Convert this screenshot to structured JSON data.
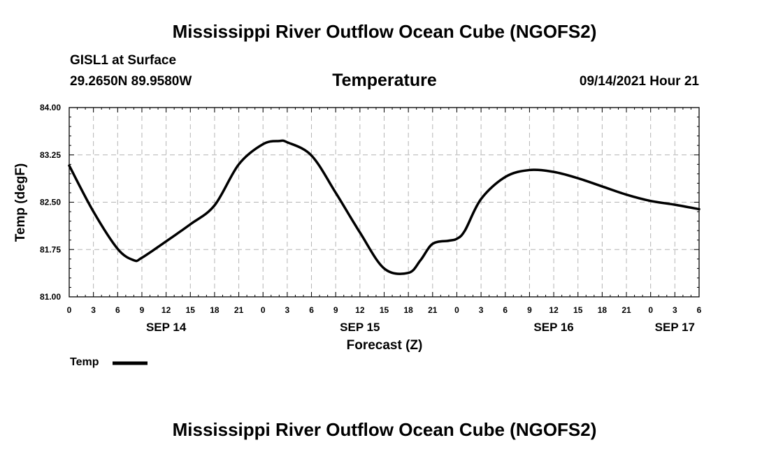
{
  "header": {
    "title": "Mississippi River Outflow Ocean Cube (NGOFS2)",
    "station": "GISL1 at Surface",
    "coords": "29.2650N  89.9580W",
    "date": "09/14/2021 Hour 21"
  },
  "footer": {
    "title": "Mississippi River Outflow Ocean Cube (NGOFS2)"
  },
  "legend": {
    "label": "Temp",
    "color": "#000000"
  },
  "chart_data": {
    "type": "line",
    "title": "Temperature",
    "xlabel": "Forecast (Z)",
    "ylabel": "Temp (degF)",
    "ylim": [
      81.0,
      84.0
    ],
    "yticks": [
      "81.00",
      "81.75",
      "82.50",
      "83.25",
      "84.00"
    ],
    "xlim_hours": [
      0,
      78
    ],
    "xtick_labels": [
      "0",
      "3",
      "6",
      "9",
      "12",
      "15",
      "18",
      "21",
      "0",
      "3",
      "6",
      "9",
      "12",
      "15",
      "18",
      "21",
      "0",
      "3",
      "6",
      "9",
      "12",
      "15",
      "18",
      "21",
      "0",
      "3",
      "6"
    ],
    "day_labels": [
      {
        "label": "SEP 14",
        "hour": 12
      },
      {
        "label": "SEP 15",
        "hour": 36
      },
      {
        "label": "SEP 16",
        "hour": 60
      },
      {
        "label": "SEP 17",
        "hour": 75
      }
    ],
    "grid": true,
    "series": [
      {
        "name": "Temp",
        "x_hours": [
          0,
          3,
          6,
          8,
          9,
          12,
          15,
          18,
          21,
          24,
          26,
          27,
          30,
          33,
          36,
          39,
          42,
          43.5,
          45,
          47,
          48,
          49,
          51,
          54,
          57,
          60,
          63,
          66,
          69,
          72,
          75,
          78
        ],
        "values": [
          83.08,
          82.35,
          81.76,
          81.58,
          81.62,
          81.88,
          82.15,
          82.45,
          83.1,
          83.42,
          83.47,
          83.45,
          83.24,
          82.65,
          82.02,
          81.45,
          81.38,
          81.58,
          81.84,
          81.89,
          81.92,
          82.05,
          82.55,
          82.9,
          83.01,
          82.98,
          82.88,
          82.75,
          82.62,
          82.52,
          82.46,
          82.39
        ]
      }
    ]
  }
}
